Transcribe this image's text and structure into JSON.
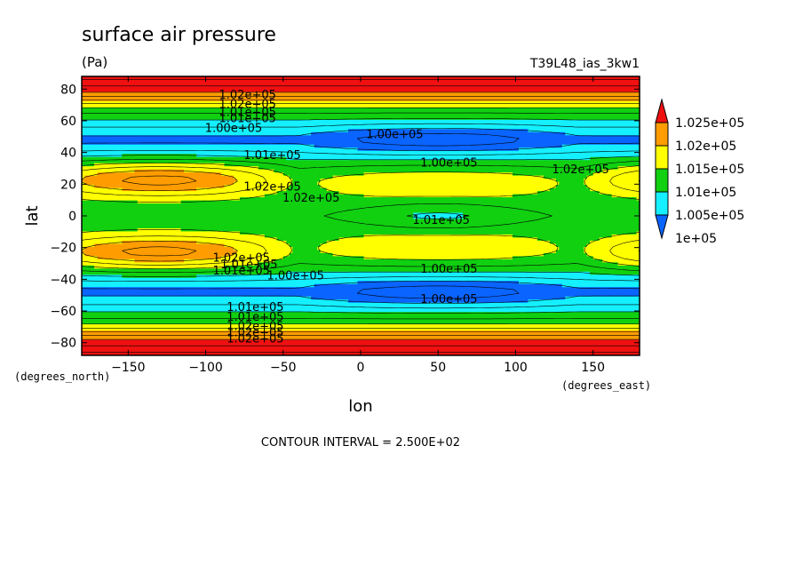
{
  "chart_data": {
    "type": "heatmap",
    "title": "surface air pressure",
    "units": "(Pa)",
    "run_id": "T39L48_ias_3kw1",
    "xlabel": "lon",
    "ylabel": "lat",
    "x_units": "(degrees_east)",
    "y_units": "(degrees_north)",
    "xlim": [
      -180,
      180
    ],
    "ylim": [
      -88,
      88
    ],
    "x_ticks": [
      -150,
      -100,
      -50,
      0,
      50,
      100,
      150
    ],
    "y_ticks": [
      -80,
      -60,
      -40,
      -20,
      0,
      20,
      40,
      60,
      80
    ],
    "x_tick_labels": [
      "−150",
      "−100",
      "−50",
      "0",
      "50",
      "100",
      "150"
    ],
    "y_tick_labels": [
      "−80",
      "−60",
      "−40",
      "−20",
      "0",
      "20",
      "40",
      "60",
      "80"
    ],
    "footer": "CONTOUR INTERVAL = 2.500E+02",
    "colorbar": {
      "levels": [
        100000,
        100500,
        101000,
        101500,
        102000,
        102500
      ],
      "labels": [
        "1e+05",
        "1.005e+05",
        "1.01e+05",
        "1.015e+05",
        "1.02e+05",
        "1.025e+05"
      ],
      "colors": [
        "#0a64ff",
        "#14f0ff",
        "#10d010",
        "#ffff00",
        "#ff9d00",
        "#f01010"
      ]
    },
    "contour_labels": [
      {
        "text": "1.02e+05",
        "lon": -73,
        "lat": 74
      },
      {
        "text": "1.02e+05",
        "lon": -73,
        "lat": 68
      },
      {
        "text": "1.01e+05",
        "lon": -73,
        "lat": 63
      },
      {
        "text": "1.01e+05",
        "lon": -73,
        "lat": 59
      },
      {
        "text": "1.00e+05",
        "lon": -82,
        "lat": 53
      },
      {
        "text": "1.00e+05",
        "lon": 22,
        "lat": 49
      },
      {
        "text": "1.01e+05",
        "lon": -57,
        "lat": 36
      },
      {
        "text": "1.00e+05",
        "lon": 57,
        "lat": 31
      },
      {
        "text": "1.02e+05",
        "lon": 142,
        "lat": 27
      },
      {
        "text": "1.02e+05",
        "lon": -57,
        "lat": 16
      },
      {
        "text": "1.02e+05",
        "lon": -32,
        "lat": 9
      },
      {
        "text": "1.01e+05",
        "lon": 52,
        "lat": -5
      },
      {
        "text": "1.02e+05",
        "lon": -77,
        "lat": -29
      },
      {
        "text": "1.01e+05",
        "lon": -72,
        "lat": -33
      },
      {
        "text": "1.01e+05",
        "lon": -77,
        "lat": -37
      },
      {
        "text": "1.00e+05",
        "lon": -42,
        "lat": -40
      },
      {
        "text": "1.00e+05",
        "lon": 57,
        "lat": -36
      },
      {
        "text": "1.00e+05",
        "lon": 57,
        "lat": -55
      },
      {
        "text": "1.01e+05",
        "lon": -68,
        "lat": -60
      },
      {
        "text": "1.01e+05",
        "lon": -68,
        "lat": -66
      },
      {
        "text": "1.02e+05",
        "lon": -68,
        "lat": -72
      },
      {
        "text": "1.02e+05",
        "lon": -68,
        "lat": -76
      },
      {
        "text": "1.02e+05",
        "lon": -68,
        "lat": -80
      }
    ]
  }
}
